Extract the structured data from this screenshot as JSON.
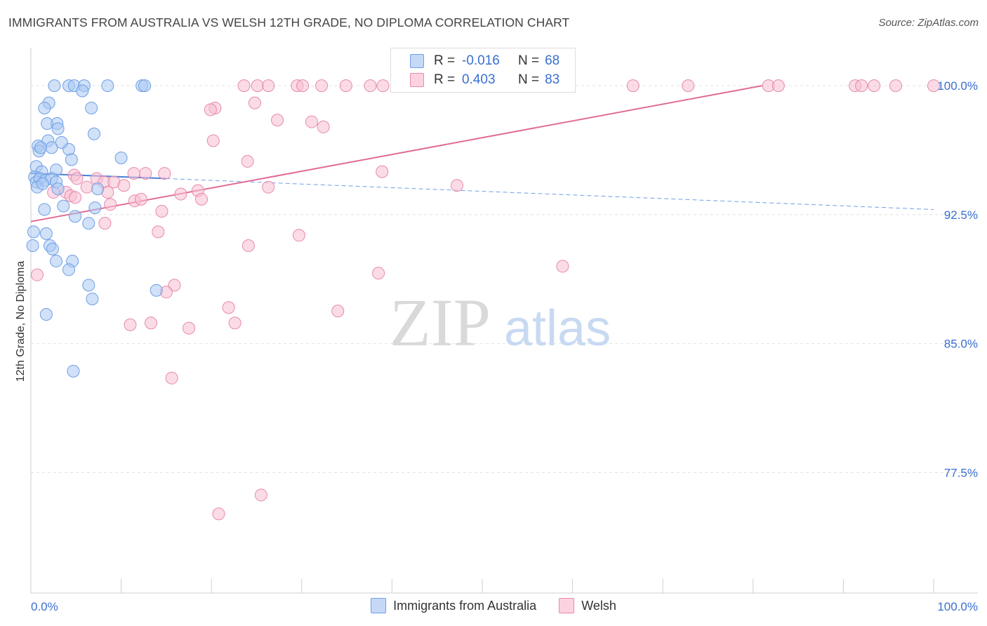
{
  "chart_data": {
    "type": "scatter",
    "title": "IMMIGRANTS FROM AUSTRALIA VS WELSH 12TH GRADE, NO DIPLOMA CORRELATION CHART",
    "source": "Source: ZipAtlas.com",
    "watermark": {
      "zip": "ZIP",
      "atlas": "atlas"
    },
    "xlabel": "",
    "ylabel": "12th Grade, No Diploma",
    "xlim": [
      0,
      100
    ],
    "ylim": [
      70.5,
      101.8
    ],
    "x_tick_labels": {
      "left": "0.0%",
      "right": "100.0%"
    },
    "y_ticks": [
      {
        "value": 100.0,
        "label": "100.0%"
      },
      {
        "value": 92.5,
        "label": "92.5%"
      },
      {
        "value": 85.0,
        "label": "85.0%"
      },
      {
        "value": 77.5,
        "label": "77.5%"
      }
    ],
    "grid": true,
    "legend": {
      "position": "top-center",
      "entries": [
        {
          "r_label": "R =",
          "r_value": "-0.016",
          "n_label": "N =",
          "n_value": "68"
        },
        {
          "r_label": "R =",
          "r_value": "0.403",
          "n_label": "N =",
          "n_value": "83"
        }
      ]
    },
    "series": [
      {
        "name": "Immigrants from Australia",
        "color": "#6f9fe6",
        "fill": "#a9c8f3",
        "trend": {
          "x": [
            0,
            15
          ],
          "y": [
            94.9,
            94.6
          ],
          "dashed_to": [
            100,
            92.8
          ]
        },
        "points": [
          [
            2.6,
            100
          ],
          [
            4.2,
            100
          ],
          [
            4.8,
            100
          ],
          [
            5.9,
            100
          ],
          [
            8.5,
            100
          ],
          [
            12.3,
            100
          ],
          [
            12.6,
            100
          ],
          [
            5.7,
            99.7
          ],
          [
            2.0,
            99.0
          ],
          [
            1.5,
            98.7
          ],
          [
            6.7,
            98.7
          ],
          [
            1.8,
            97.8
          ],
          [
            2.9,
            97.8
          ],
          [
            3.0,
            97.5
          ],
          [
            7.0,
            97.2
          ],
          [
            1.9,
            96.8
          ],
          [
            0.8,
            96.5
          ],
          [
            0.9,
            96.2
          ],
          [
            1.1,
            96.4
          ],
          [
            2.3,
            96.4
          ],
          [
            4.2,
            96.3
          ],
          [
            3.4,
            96.7
          ],
          [
            0.6,
            95.3
          ],
          [
            1.2,
            95.0
          ],
          [
            2.8,
            95.1
          ],
          [
            10.0,
            95.8
          ],
          [
            4.5,
            95.7
          ],
          [
            0.4,
            94.7
          ],
          [
            0.6,
            94.4
          ],
          [
            1.0,
            94.6
          ],
          [
            1.6,
            94.5
          ],
          [
            2.3,
            94.6
          ],
          [
            2.8,
            94.4
          ],
          [
            0.7,
            94.1
          ],
          [
            1.3,
            94.3
          ],
          [
            3.0,
            94.0
          ],
          [
            7.4,
            94.0
          ],
          [
            3.6,
            93.0
          ],
          [
            1.5,
            92.8
          ],
          [
            4.9,
            92.4
          ],
          [
            7.1,
            92.9
          ],
          [
            6.4,
            92.0
          ],
          [
            1.7,
            91.4
          ],
          [
            2.1,
            90.7
          ],
          [
            2.4,
            90.5
          ],
          [
            0.3,
            91.5
          ],
          [
            0.2,
            90.7
          ],
          [
            2.8,
            89.8
          ],
          [
            4.6,
            89.8
          ],
          [
            4.2,
            89.3
          ],
          [
            6.4,
            88.4
          ],
          [
            6.8,
            87.6
          ],
          [
            13.9,
            88.1
          ],
          [
            1.7,
            86.7
          ],
          [
            4.7,
            83.4
          ]
        ]
      },
      {
        "name": "Welsh",
        "color": "#e889ad",
        "fill": "#f7bfd2",
        "trend": {
          "x": [
            0,
            81
          ],
          "y": [
            92.1,
            100
          ]
        },
        "points": [
          [
            23.6,
            100
          ],
          [
            25.1,
            100
          ],
          [
            26.3,
            100
          ],
          [
            29.5,
            100
          ],
          [
            30.1,
            100
          ],
          [
            32.2,
            100
          ],
          [
            34.9,
            100
          ],
          [
            37.6,
            100
          ],
          [
            39.0,
            100
          ],
          [
            41.4,
            100
          ],
          [
            42.8,
            100
          ],
          [
            43.7,
            100
          ],
          [
            44.3,
            100
          ],
          [
            47.4,
            100
          ],
          [
            49.7,
            100
          ],
          [
            51.8,
            100
          ],
          [
            52.2,
            100
          ],
          [
            52.7,
            100
          ],
          [
            54.1,
            100
          ],
          [
            57.4,
            100
          ],
          [
            66.7,
            100
          ],
          [
            72.8,
            100
          ],
          [
            81.7,
            100
          ],
          [
            82.8,
            100
          ],
          [
            91.3,
            100
          ],
          [
            92.0,
            100
          ],
          [
            93.4,
            100
          ],
          [
            95.8,
            100
          ],
          [
            100,
            100
          ],
          [
            24.8,
            99.0
          ],
          [
            20.4,
            98.7
          ],
          [
            19.9,
            98.6
          ],
          [
            27.3,
            98.0
          ],
          [
            31.1,
            97.9
          ],
          [
            32.4,
            97.6
          ],
          [
            20.2,
            96.8
          ],
          [
            24.0,
            95.6
          ],
          [
            38.9,
            95.0
          ],
          [
            11.4,
            94.9
          ],
          [
            12.7,
            94.9
          ],
          [
            14.8,
            94.9
          ],
          [
            4.8,
            94.8
          ],
          [
            5.1,
            94.6
          ],
          [
            7.3,
            94.6
          ],
          [
            8.1,
            94.4
          ],
          [
            9.2,
            94.4
          ],
          [
            10.3,
            94.2
          ],
          [
            6.2,
            94.1
          ],
          [
            8.5,
            93.8
          ],
          [
            16.6,
            93.7
          ],
          [
            18.5,
            93.9
          ],
          [
            26.3,
            94.1
          ],
          [
            47.2,
            94.2
          ],
          [
            2.5,
            93.8
          ],
          [
            3.9,
            93.8
          ],
          [
            4.4,
            93.6
          ],
          [
            4.9,
            93.5
          ],
          [
            11.5,
            93.3
          ],
          [
            12.2,
            93.4
          ],
          [
            18.9,
            93.4
          ],
          [
            8.8,
            93.1
          ],
          [
            14.5,
            92.7
          ],
          [
            8.2,
            92.0
          ],
          [
            14.1,
            91.5
          ],
          [
            29.7,
            91.3
          ],
          [
            24.1,
            90.7
          ],
          [
            38.5,
            89.1
          ],
          [
            58.9,
            89.5
          ],
          [
            15.9,
            88.4
          ],
          [
            15.0,
            88.0
          ],
          [
            21.9,
            87.1
          ],
          [
            34.0,
            86.9
          ],
          [
            11.0,
            86.1
          ],
          [
            13.3,
            86.2
          ],
          [
            17.5,
            85.9
          ],
          [
            22.6,
            86.2
          ],
          [
            15.6,
            83.0
          ],
          [
            25.5,
            76.2
          ],
          [
            20.8,
            75.1
          ],
          [
            0.7,
            89.0
          ]
        ]
      }
    ]
  }
}
